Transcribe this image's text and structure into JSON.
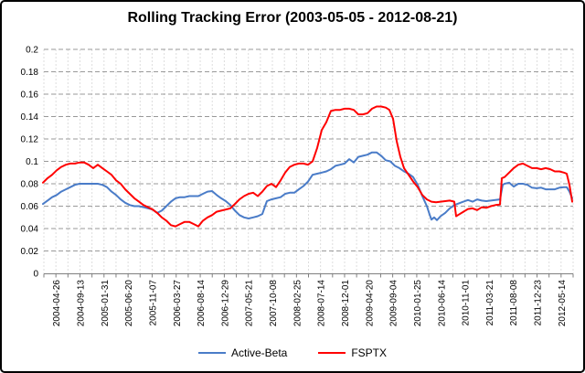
{
  "chart_data": {
    "type": "line",
    "title": "Rolling Tracking Error (2003-05-05 - 2012-08-21)",
    "ylim": [
      0,
      0.2
    ],
    "y_tick_step": 0.02,
    "y_tick_labels": [
      "0.2",
      "0.18",
      "0.16",
      "0.14",
      "0.12",
      "0.1",
      "0.08",
      "0.06",
      "0.04",
      "0.02",
      "0"
    ],
    "x_tick_labels": [
      "2004-04-26",
      "2004-09-13",
      "2005-01-31",
      "2005-06-20",
      "2005-11-07",
      "2006-03-27",
      "2006-08-14",
      "2006-12-29",
      "2007-05-21",
      "2007-10-08",
      "2008-02-25",
      "2008-07-14",
      "2008-12-01",
      "2009-04-20",
      "2009-09-04",
      "2010-01-25",
      "2010-06-14",
      "2010-11-01",
      "2011-03-21",
      "2011-08-08",
      "2011-12-23",
      "2012-05-14"
    ],
    "grid": "horizontal dark-gray dashed, vertical light-gray dashed",
    "legend_position": "bottom-center",
    "axis_color": "#808080",
    "h_grid_color": "#999999",
    "v_grid_color": "#dddddd",
    "series": [
      {
        "name": "Active-Beta",
        "color": "#4a7cc8",
        "points": [
          [
            45,
            0.062
          ],
          [
            50,
            0.065
          ],
          [
            55,
            0.068
          ],
          [
            60,
            0.07
          ],
          [
            65,
            0.073
          ],
          [
            70,
            0.075
          ],
          [
            75,
            0.077
          ],
          [
            80,
            0.079
          ],
          [
            85,
            0.08
          ],
          [
            90,
            0.08
          ],
          [
            95,
            0.08
          ],
          [
            100,
            0.08
          ],
          [
            105,
            0.08
          ],
          [
            110,
            0.079
          ],
          [
            115,
            0.077
          ],
          [
            120,
            0.073
          ],
          [
            125,
            0.07
          ],
          [
            130,
            0.066
          ],
          [
            135,
            0.063
          ],
          [
            140,
            0.061
          ],
          [
            145,
            0.06
          ],
          [
            150,
            0.06
          ],
          [
            155,
            0.059
          ],
          [
            160,
            0.058
          ],
          [
            165,
            0.057
          ],
          [
            170,
            0.054
          ],
          [
            175,
            0.056
          ],
          [
            180,
            0.06
          ],
          [
            185,
            0.064
          ],
          [
            190,
            0.067
          ],
          [
            195,
            0.068
          ],
          [
            200,
            0.068
          ],
          [
            205,
            0.069
          ],
          [
            210,
            0.069
          ],
          [
            215,
            0.069
          ],
          [
            220,
            0.071
          ],
          [
            225,
            0.073
          ],
          [
            230,
            0.0735
          ],
          [
            235,
            0.07
          ],
          [
            240,
            0.067
          ],
          [
            245,
            0.0645
          ],
          [
            250,
            0.061
          ],
          [
            255,
            0.056
          ],
          [
            260,
            0.052
          ],
          [
            265,
            0.05
          ],
          [
            270,
            0.049
          ],
          [
            275,
            0.05
          ],
          [
            280,
            0.051
          ],
          [
            285,
            0.053
          ],
          [
            288,
            0.06
          ],
          [
            290,
            0.0645
          ],
          [
            295,
            0.066
          ],
          [
            300,
            0.067
          ],
          [
            305,
            0.068
          ],
          [
            310,
            0.071
          ],
          [
            315,
            0.072
          ],
          [
            320,
            0.072
          ],
          [
            325,
            0.075
          ],
          [
            330,
            0.078
          ],
          [
            335,
            0.082
          ],
          [
            340,
            0.088
          ],
          [
            345,
            0.089
          ],
          [
            350,
            0.09
          ],
          [
            355,
            0.091
          ],
          [
            360,
            0.093
          ],
          [
            365,
            0.096
          ],
          [
            370,
            0.097
          ],
          [
            375,
            0.098
          ],
          [
            380,
            0.102
          ],
          [
            385,
            0.099
          ],
          [
            390,
            0.104
          ],
          [
            395,
            0.105
          ],
          [
            400,
            0.106
          ],
          [
            405,
            0.108
          ],
          [
            410,
            0.108
          ],
          [
            415,
            0.105
          ],
          [
            420,
            0.101
          ],
          [
            425,
            0.1
          ],
          [
            430,
            0.096
          ],
          [
            435,
            0.094
          ],
          [
            440,
            0.091
          ],
          [
            445,
            0.089
          ],
          [
            450,
            0.086
          ],
          [
            455,
            0.079
          ],
          [
            460,
            0.069
          ],
          [
            465,
            0.06
          ],
          [
            468,
            0.0525
          ],
          [
            470,
            0.048
          ],
          [
            473,
            0.05
          ],
          [
            476,
            0.0475
          ],
          [
            480,
            0.051
          ],
          [
            485,
            0.054
          ],
          [
            490,
            0.058
          ],
          [
            495,
            0.061
          ],
          [
            500,
            0.0625
          ],
          [
            505,
            0.064
          ],
          [
            510,
            0.0655
          ],
          [
            515,
            0.064
          ],
          [
            520,
            0.066
          ],
          [
            525,
            0.065
          ],
          [
            530,
            0.0645
          ],
          [
            535,
            0.065
          ],
          [
            540,
            0.0655
          ],
          [
            545,
            0.066
          ],
          [
            548,
            0.079
          ],
          [
            550,
            0.08
          ],
          [
            555,
            0.081
          ],
          [
            560,
            0.0775
          ],
          [
            565,
            0.08
          ],
          [
            570,
            0.08
          ],
          [
            575,
            0.079
          ],
          [
            580,
            0.0765
          ],
          [
            585,
            0.076
          ],
          [
            590,
            0.0765
          ],
          [
            595,
            0.075
          ],
          [
            600,
            0.075
          ],
          [
            605,
            0.075
          ],
          [
            610,
            0.0765
          ],
          [
            615,
            0.077
          ],
          [
            618,
            0.077
          ],
          [
            621,
            0.073
          ],
          [
            624,
            0.067
          ]
        ]
      },
      {
        "name": "FSPTX",
        "color": "#ff0000",
        "points": [
          [
            45,
            0.081
          ],
          [
            50,
            0.085
          ],
          [
            55,
            0.088
          ],
          [
            60,
            0.092
          ],
          [
            65,
            0.095
          ],
          [
            70,
            0.097
          ],
          [
            75,
            0.098
          ],
          [
            80,
            0.098
          ],
          [
            85,
            0.099
          ],
          [
            90,
            0.099
          ],
          [
            95,
            0.097
          ],
          [
            100,
            0.094
          ],
          [
            105,
            0.097
          ],
          [
            110,
            0.094
          ],
          [
            115,
            0.091
          ],
          [
            120,
            0.088
          ],
          [
            125,
            0.083
          ],
          [
            130,
            0.08
          ],
          [
            135,
            0.075
          ],
          [
            140,
            0.071
          ],
          [
            145,
            0.067
          ],
          [
            150,
            0.064
          ],
          [
            155,
            0.061
          ],
          [
            160,
            0.059
          ],
          [
            165,
            0.057
          ],
          [
            170,
            0.054
          ],
          [
            175,
            0.05
          ],
          [
            180,
            0.047
          ],
          [
            185,
            0.043
          ],
          [
            190,
            0.042
          ],
          [
            195,
            0.044
          ],
          [
            200,
            0.046
          ],
          [
            205,
            0.046
          ],
          [
            210,
            0.044
          ],
          [
            215,
            0.042
          ],
          [
            220,
            0.047
          ],
          [
            225,
            0.05
          ],
          [
            230,
            0.052
          ],
          [
            235,
            0.055
          ],
          [
            240,
            0.056
          ],
          [
            245,
            0.057
          ],
          [
            250,
            0.058
          ],
          [
            255,
            0.062
          ],
          [
            260,
            0.066
          ],
          [
            265,
            0.069
          ],
          [
            270,
            0.071
          ],
          [
            275,
            0.072
          ],
          [
            280,
            0.069
          ],
          [
            285,
            0.073
          ],
          [
            290,
            0.078
          ],
          [
            295,
            0.08
          ],
          [
            300,
            0.077
          ],
          [
            305,
            0.083
          ],
          [
            310,
            0.09
          ],
          [
            315,
            0.095
          ],
          [
            320,
            0.097
          ],
          [
            325,
            0.098
          ],
          [
            330,
            0.098
          ],
          [
            335,
            0.097
          ],
          [
            340,
            0.1
          ],
          [
            345,
            0.112
          ],
          [
            350,
            0.128
          ],
          [
            355,
            0.135
          ],
          [
            360,
            0.145
          ],
          [
            365,
            0.146
          ],
          [
            370,
            0.146
          ],
          [
            375,
            0.147
          ],
          [
            380,
            0.147
          ],
          [
            385,
            0.146
          ],
          [
            390,
            0.142
          ],
          [
            395,
            0.142
          ],
          [
            400,
            0.143
          ],
          [
            405,
            0.147
          ],
          [
            410,
            0.149
          ],
          [
            415,
            0.149
          ],
          [
            420,
            0.148
          ],
          [
            424,
            0.146
          ],
          [
            428,
            0.138
          ],
          [
            432,
            0.118
          ],
          [
            436,
            0.104
          ],
          [
            440,
            0.094
          ],
          [
            445,
            0.088
          ],
          [
            450,
            0.082
          ],
          [
            455,
            0.077
          ],
          [
            460,
            0.07
          ],
          [
            465,
            0.066
          ],
          [
            470,
            0.064
          ],
          [
            475,
            0.0635
          ],
          [
            480,
            0.064
          ],
          [
            485,
            0.0645
          ],
          [
            490,
            0.065
          ],
          [
            495,
            0.064
          ],
          [
            497,
            0.051
          ],
          [
            500,
            0.0525
          ],
          [
            505,
            0.055
          ],
          [
            510,
            0.0575
          ],
          [
            515,
            0.058
          ],
          [
            520,
            0.0565
          ],
          [
            525,
            0.059
          ],
          [
            530,
            0.0585
          ],
          [
            535,
            0.06
          ],
          [
            540,
            0.061
          ],
          [
            545,
            0.0615
          ],
          [
            547,
            0.085
          ],
          [
            550,
            0.086
          ],
          [
            555,
            0.09
          ],
          [
            560,
            0.094
          ],
          [
            565,
            0.097
          ],
          [
            570,
            0.098
          ],
          [
            575,
            0.096
          ],
          [
            580,
            0.094
          ],
          [
            585,
            0.094
          ],
          [
            590,
            0.093
          ],
          [
            595,
            0.094
          ],
          [
            600,
            0.093
          ],
          [
            605,
            0.091
          ],
          [
            610,
            0.091
          ],
          [
            615,
            0.09
          ],
          [
            618,
            0.089
          ],
          [
            621,
            0.079
          ],
          [
            624,
            0.064
          ]
        ]
      }
    ]
  }
}
